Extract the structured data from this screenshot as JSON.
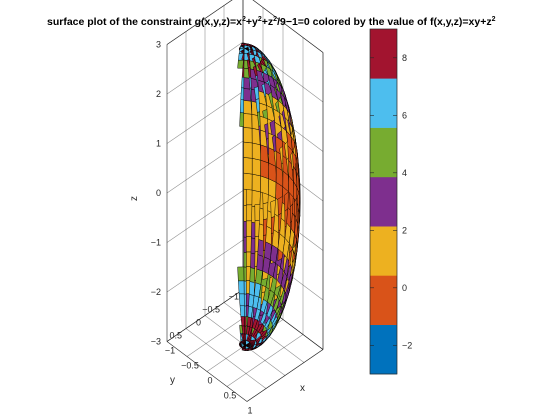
{
  "chart_data": {
    "type": "surface",
    "title": {
      "main": "surface plot of the constraint g(x,y,z)=x",
      "sup1": "2",
      "part2": "+y",
      "sup2": "2",
      "part3": "+z",
      "sup3": "2",
      "part4": "/9−1=0 colored by the value of f(x,y,z)=xy+z",
      "sup4": "2"
    },
    "xlabel": "x",
    "ylabel": "y",
    "zlabel": "z",
    "xlim": [
      -1,
      1
    ],
    "ylim": [
      -1,
      1
    ],
    "zlim": [
      -3,
      3
    ],
    "x_ticks": [
      "−1",
      "−0.5",
      "0",
      "0.5",
      "1"
    ],
    "y_ticks": [
      "−1",
      "−0.5",
      "0",
      "0.5"
    ],
    "z_ticks": [
      "−3",
      "−2",
      "−1",
      "0",
      "1",
      "2",
      "3"
    ],
    "surface": {
      "equation": "x^2 + y^2 + z^2/9 = 1",
      "color_function": "x*y + z^2",
      "u_divisions": 40,
      "v_divisions": 30
    },
    "colorbar": {
      "limits": [
        -3,
        9
      ],
      "tick_values": [
        -2,
        0,
        2,
        4,
        6,
        8
      ],
      "tick_labels": [
        "−2",
        "0",
        "2",
        "4",
        "6",
        "8"
      ],
      "colors": [
        "#0072BD",
        "#D95319",
        "#EDB120",
        "#7E2F8E",
        "#77AC30",
        "#4DBEEE",
        "#A2142F"
      ]
    },
    "grid": true
  }
}
